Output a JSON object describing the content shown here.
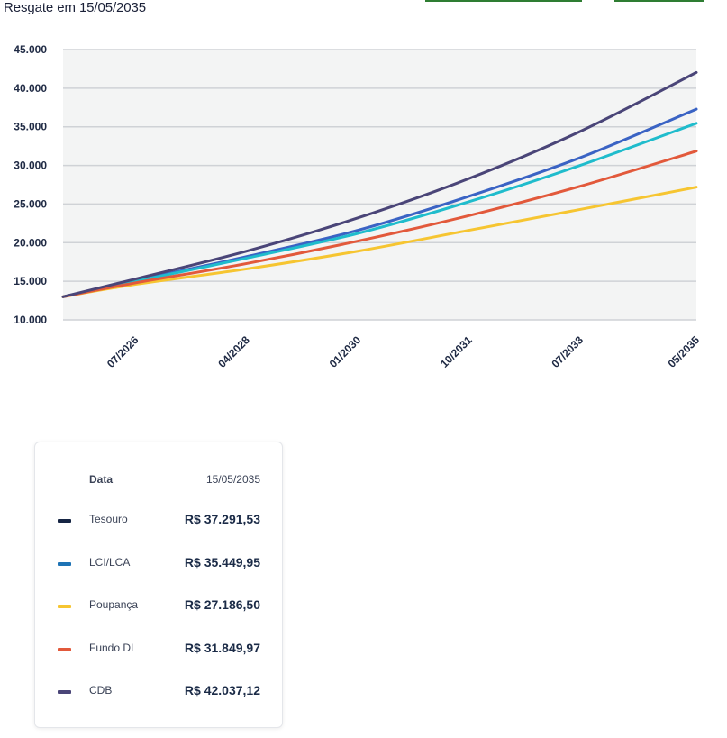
{
  "title": "Resgate em 15/05/2035",
  "colors": {
    "tesouro": "#3a63c4",
    "lci_lca": "#1fbccc",
    "poupanca": "#f6c531",
    "fundo_di": "#e2593b",
    "cdb": "#4a4578",
    "legend_tesouro": "#162544",
    "legend_lci_lca": "#1e73b5",
    "grid": "#cfd2d6",
    "plot_bg": "#f3f4f4"
  },
  "chart_data": {
    "type": "line",
    "ylim": [
      10000,
      45000
    ],
    "yticks": [
      "10.000",
      "15.000",
      "20.000",
      "25.000",
      "30.000",
      "35.000",
      "40.000",
      "45.000"
    ],
    "ytick_values": [
      10000,
      15000,
      20000,
      25000,
      30000,
      35000,
      40000,
      45000
    ],
    "xlim": [
      2025.4,
      2035.37
    ],
    "xticks": [
      "07/2026",
      "04/2028",
      "01/2030",
      "10/2031",
      "07/2033",
      "05/2035"
    ],
    "xtick_values": [
      2026.54,
      2028.29,
      2030.04,
      2031.79,
      2033.54,
      2035.37
    ],
    "x": [
      2025.4,
      2026.54,
      2028.29,
      2030.04,
      2031.79,
      2033.54,
      2035.37
    ],
    "series": [
      {
        "name": "Tesouro",
        "color_key": "tesouro",
        "values": [
          13000,
          15100,
          18200,
          21600,
          26000,
          31000,
          37291.53
        ]
      },
      {
        "name": "LCI/LCA",
        "color_key": "lci_lca",
        "values": [
          13000,
          15000,
          18000,
          21200,
          25300,
          30000,
          35449.95
        ]
      },
      {
        "name": "Poupança",
        "color_key": "poupanca",
        "values": [
          13000,
          14600,
          16600,
          18900,
          21600,
          24300,
          27186.5
        ]
      },
      {
        "name": "Fundo DI",
        "color_key": "fundo_di",
        "values": [
          13000,
          14800,
          17300,
          20200,
          23500,
          27300,
          31849.97
        ]
      },
      {
        "name": "CDB",
        "color_key": "cdb",
        "values": [
          13000,
          15300,
          18900,
          23200,
          28300,
          34400,
          42037.12
        ]
      }
    ]
  },
  "legend": {
    "header_label": "Data",
    "header_value": "15/05/2035",
    "items": [
      {
        "name": "Tesouro",
        "value": "R$ 37.291,53",
        "color_key": "legend_tesouro"
      },
      {
        "name": "LCI/LCA",
        "value": "R$ 35.449,95",
        "color_key": "legend_lci_lca"
      },
      {
        "name": "Poupança",
        "value": "R$ 27.186,50",
        "color_key": "poupanca"
      },
      {
        "name": "Fundo DI",
        "value": "R$ 31.849,97",
        "color_key": "fundo_di"
      },
      {
        "name": "CDB",
        "value": "R$ 42.037,12",
        "color_key": "cdb"
      }
    ]
  }
}
